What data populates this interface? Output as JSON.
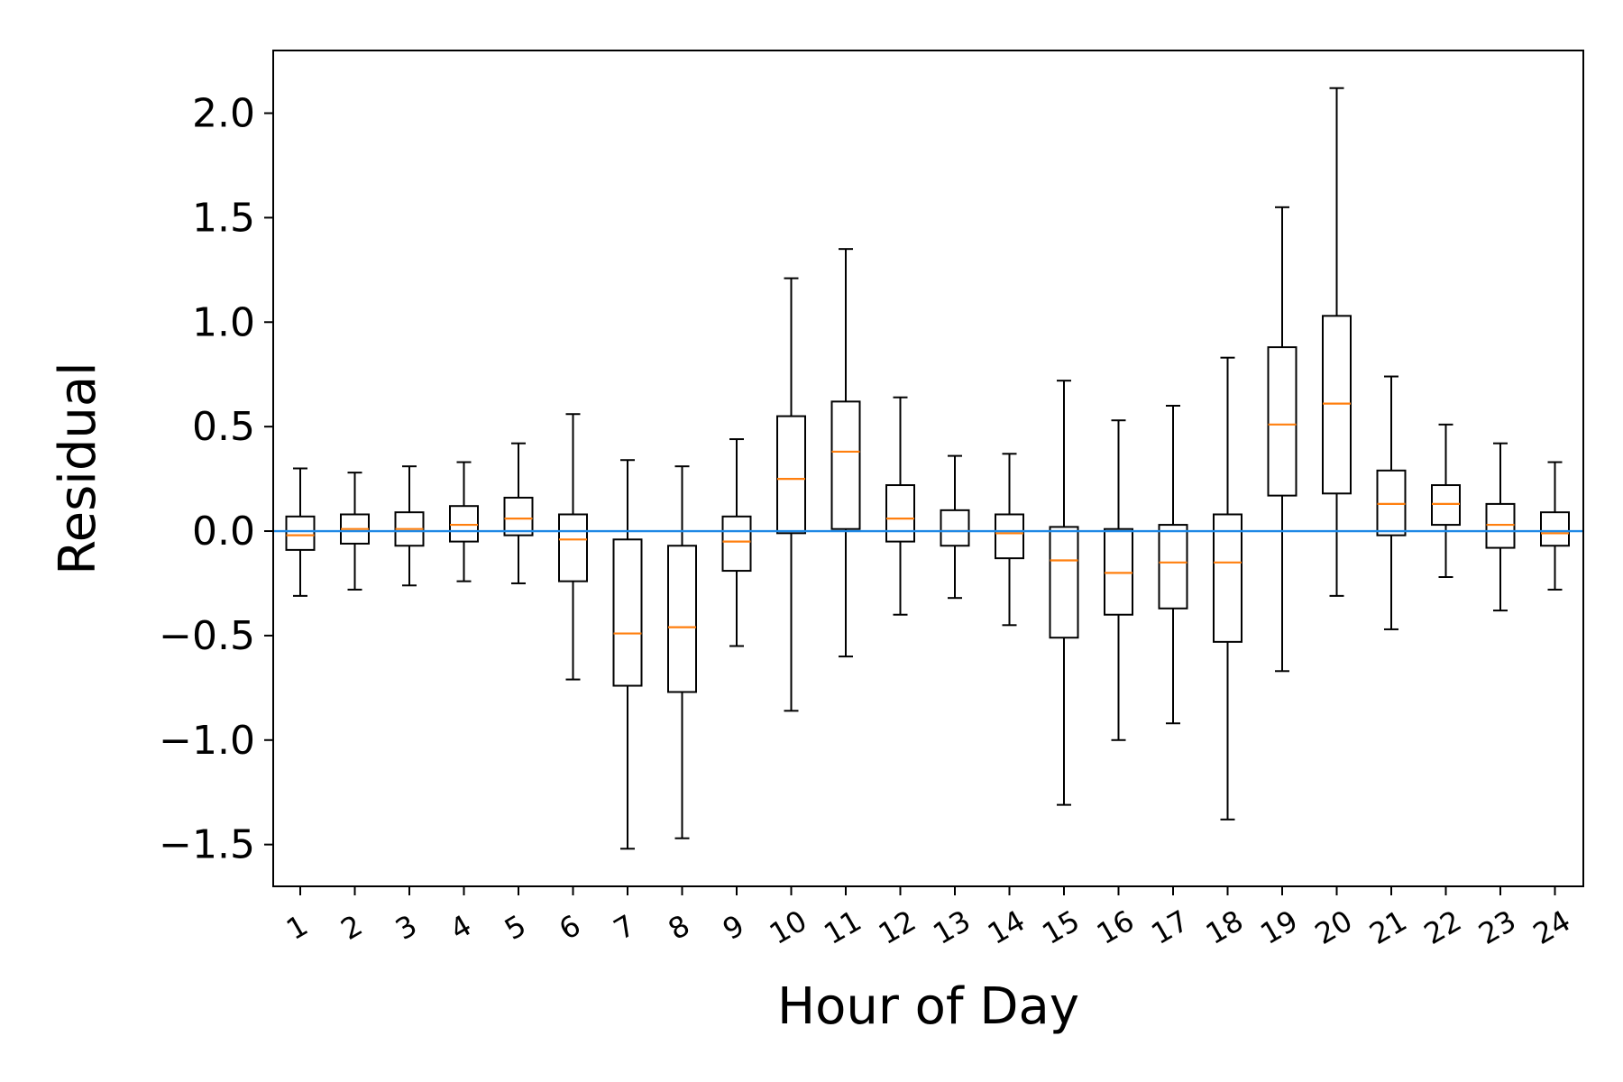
{
  "chart_data": {
    "type": "boxplot",
    "xlabel": "Hour of Day",
    "ylabel": "Residual",
    "ylim": [
      -1.7,
      2.3
    ],
    "yticks": [
      2.0,
      1.5,
      1.0,
      0.5,
      0.0,
      -0.5,
      -1.0,
      -1.5
    ],
    "ytick_labels": [
      "2.0",
      "1.5",
      "1.0",
      "0.5",
      "0.0",
      "−0.5",
      "−1.0",
      "−1.5"
    ],
    "categories": [
      "1",
      "2",
      "3",
      "4",
      "5",
      "6",
      "7",
      "8",
      "9",
      "10",
      "11",
      "12",
      "13",
      "14",
      "15",
      "16",
      "17",
      "18",
      "19",
      "20",
      "21",
      "22",
      "23",
      "24"
    ],
    "reference_line_y": 0.0,
    "grid": false,
    "colors": {
      "box": "#000000",
      "median": "#ff7f0e",
      "reference": "#1e88e5"
    },
    "boxes": [
      {
        "whislo": -0.31,
        "q1": -0.09,
        "med": -0.02,
        "q3": 0.07,
        "whishi": 0.3
      },
      {
        "whislo": -0.28,
        "q1": -0.06,
        "med": 0.01,
        "q3": 0.08,
        "whishi": 0.28
      },
      {
        "whislo": -0.26,
        "q1": -0.07,
        "med": 0.01,
        "q3": 0.09,
        "whishi": 0.31
      },
      {
        "whislo": -0.24,
        "q1": -0.05,
        "med": 0.03,
        "q3": 0.12,
        "whishi": 0.33
      },
      {
        "whislo": -0.25,
        "q1": -0.02,
        "med": 0.06,
        "q3": 0.16,
        "whishi": 0.42
      },
      {
        "whislo": -0.71,
        "q1": -0.24,
        "med": -0.04,
        "q3": 0.08,
        "whishi": 0.56
      },
      {
        "whislo": -1.52,
        "q1": -0.74,
        "med": -0.49,
        "q3": -0.04,
        "whishi": 0.34
      },
      {
        "whislo": -1.47,
        "q1": -0.77,
        "med": -0.46,
        "q3": -0.07,
        "whishi": 0.31
      },
      {
        "whislo": -0.55,
        "q1": -0.19,
        "med": -0.05,
        "q3": 0.07,
        "whishi": 0.44
      },
      {
        "whislo": -0.86,
        "q1": -0.01,
        "med": 0.25,
        "q3": 0.55,
        "whishi": 1.21
      },
      {
        "whislo": -0.6,
        "q1": 0.01,
        "med": 0.38,
        "q3": 0.62,
        "whishi": 1.35
      },
      {
        "whislo": -0.4,
        "q1": -0.05,
        "med": 0.06,
        "q3": 0.22,
        "whishi": 0.64
      },
      {
        "whislo": -0.32,
        "q1": -0.07,
        "med": 0.0,
        "q3": 0.1,
        "whishi": 0.36
      },
      {
        "whislo": -0.45,
        "q1": -0.13,
        "med": -0.01,
        "q3": 0.08,
        "whishi": 0.37
      },
      {
        "whislo": -1.31,
        "q1": -0.51,
        "med": -0.14,
        "q3": 0.02,
        "whishi": 0.72
      },
      {
        "whislo": -1.0,
        "q1": -0.4,
        "med": -0.2,
        "q3": 0.01,
        "whishi": 0.53
      },
      {
        "whislo": -0.92,
        "q1": -0.37,
        "med": -0.15,
        "q3": 0.03,
        "whishi": 0.6
      },
      {
        "whislo": -1.38,
        "q1": -0.53,
        "med": -0.15,
        "q3": 0.08,
        "whishi": 0.83
      },
      {
        "whislo": -0.67,
        "q1": 0.17,
        "med": 0.51,
        "q3": 0.88,
        "whishi": 1.55
      },
      {
        "whislo": -0.31,
        "q1": 0.18,
        "med": 0.61,
        "q3": 1.03,
        "whishi": 2.12
      },
      {
        "whislo": -0.47,
        "q1": -0.02,
        "med": 0.13,
        "q3": 0.29,
        "whishi": 0.74
      },
      {
        "whislo": -0.22,
        "q1": 0.03,
        "med": 0.13,
        "q3": 0.22,
        "whishi": 0.51
      },
      {
        "whislo": -0.38,
        "q1": -0.08,
        "med": 0.03,
        "q3": 0.13,
        "whishi": 0.42
      },
      {
        "whislo": -0.28,
        "q1": -0.07,
        "med": -0.01,
        "q3": 0.09,
        "whishi": 0.33
      }
    ]
  }
}
